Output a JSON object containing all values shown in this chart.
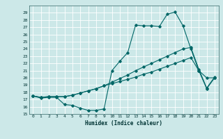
{
  "title": "",
  "xlabel": "Humidex (Indice chaleur)",
  "background_color": "#cce8e8",
  "grid_color": "#ffffff",
  "line_color": "#006666",
  "xlim": [
    -0.5,
    23.5
  ],
  "ylim": [
    15,
    30
  ],
  "yticks": [
    15,
    16,
    17,
    18,
    19,
    20,
    21,
    22,
    23,
    24,
    25,
    26,
    27,
    28,
    29
  ],
  "xticks": [
    0,
    1,
    2,
    3,
    4,
    5,
    6,
    7,
    8,
    9,
    10,
    11,
    12,
    13,
    14,
    15,
    16,
    17,
    18,
    19,
    20,
    21,
    22,
    23
  ],
  "line1_x": [
    0,
    1,
    2,
    3,
    4,
    5,
    6,
    7,
    8,
    9,
    10,
    11,
    12,
    13,
    14,
    15,
    16,
    17,
    18,
    19,
    20,
    21,
    22,
    23
  ],
  "line1_y": [
    17.5,
    17.2,
    17.3,
    17.3,
    16.3,
    16.2,
    15.8,
    15.5,
    15.5,
    15.7,
    21.0,
    22.3,
    23.5,
    27.3,
    27.2,
    27.2,
    27.1,
    28.8,
    29.1,
    27.2,
    24.0,
    21.0,
    20.0,
    20.0
  ],
  "line2_x": [
    0,
    1,
    2,
    3,
    4,
    5,
    6,
    7,
    8,
    9,
    10,
    11,
    12,
    13,
    14,
    15,
    16,
    17,
    18,
    19,
    20,
    21,
    22,
    23
  ],
  "line2_y": [
    17.5,
    17.3,
    17.4,
    17.4,
    17.4,
    17.6,
    17.9,
    18.2,
    18.5,
    18.9,
    19.4,
    19.9,
    20.4,
    21.0,
    21.5,
    22.0,
    22.5,
    23.0,
    23.5,
    24.0,
    24.2,
    21.2,
    18.6,
    20.1
  ],
  "line3_x": [
    0,
    1,
    2,
    3,
    4,
    5,
    6,
    7,
    8,
    9,
    10,
    11,
    12,
    13,
    14,
    15,
    16,
    17,
    18,
    19,
    20,
    21,
    22,
    23
  ],
  "line3_y": [
    17.5,
    17.3,
    17.4,
    17.4,
    17.4,
    17.6,
    17.9,
    18.2,
    18.5,
    18.9,
    19.2,
    19.5,
    19.8,
    20.1,
    20.5,
    20.8,
    21.2,
    21.6,
    22.0,
    22.4,
    22.8,
    21.0,
    18.5,
    20.0
  ]
}
